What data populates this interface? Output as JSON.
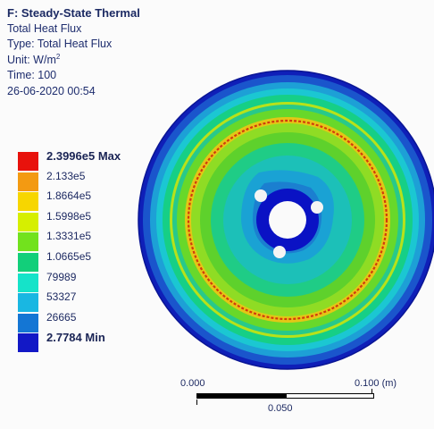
{
  "result": {
    "title": "F: Steady-State Thermal",
    "subtitle": "Total Heat Flux",
    "type_line": "Type: Total Heat Flux",
    "unit_prefix": "Unit: W/m",
    "unit_sup": "2",
    "time_line": "Time: 100",
    "timestamp": "26-06-2020 00:54"
  },
  "legend": {
    "entries": [
      {
        "label": "2.3996e5 Max",
        "color": "#e8120c",
        "strong": true
      },
      {
        "label": "2.133e5",
        "color": "#f39a12"
      },
      {
        "label": "1.8664e5",
        "color": "#f7d600"
      },
      {
        "label": "1.5998e5",
        "color": "#d6ef00"
      },
      {
        "label": "1.3331e5",
        "color": "#72e21d"
      },
      {
        "label": "1.0665e5",
        "color": "#12cf7a"
      },
      {
        "label": "79989",
        "color": "#15e3c9"
      },
      {
        "label": "53327",
        "color": "#19b7e2"
      },
      {
        "label": "26665",
        "color": "#1476d4"
      },
      {
        "label": "2.7784 Min",
        "color": "#1218c6",
        "strong": true
      }
    ]
  },
  "scale_bar": {
    "left_label": "0.000",
    "right_label": "0.100 (m)",
    "mid_label": "0.050"
  }
}
